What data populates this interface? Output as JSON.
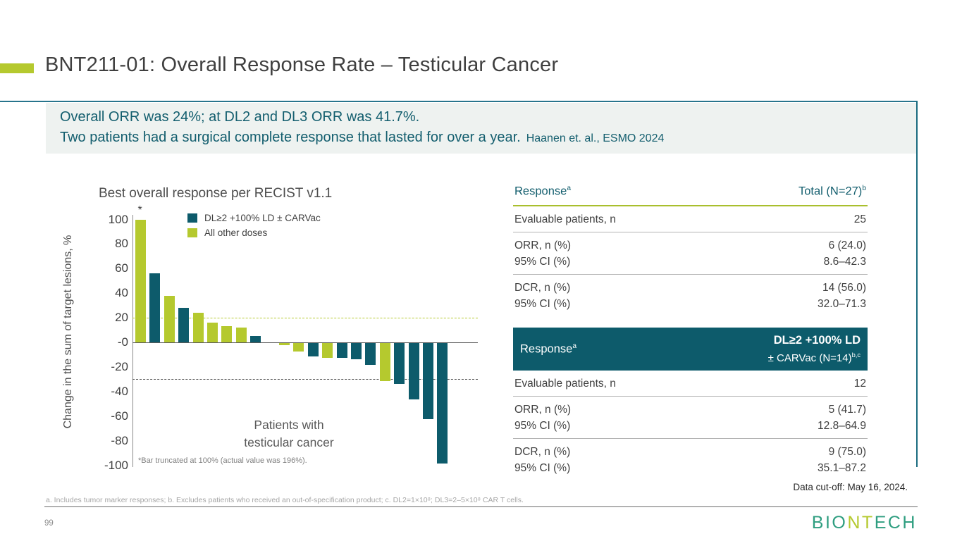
{
  "slide": {
    "title": "BNT211-01: Overall Response Rate – Testicular Cancer",
    "page_number": "99",
    "data_cutoff": "Data cut-off: May 16, 2024.",
    "footnote": "a. Includes tumor marker responses; b. Excludes patients who received an out-of-specification product; c. DL2=1×10⁸; DL3=2–5×10⁸ CAR T cells.",
    "logo": {
      "part1": "BIO",
      "part2": "NT",
      "part3": "ECH"
    }
  },
  "highlight": {
    "line1": "Overall ORR was 24%; at DL2 and DL3 ORR was 41.7%.",
    "line2": "Two patients had a surgical complete response that lasted for over a year.",
    "reference": "Haanen  et. al., ESMO 2024"
  },
  "colors": {
    "teal_bar": "#0d5b6b",
    "green_bar": "#b5c92e",
    "teal_text": "#135e6e",
    "rule_teal": "#27748c"
  },
  "chart_data": {
    "type": "bar",
    "title": "Best overall response per RECIST v1.1",
    "ylabel": "Change in the sum of target lesions, %",
    "xlabel": "",
    "ylim": [
      -100,
      100
    ],
    "ytick_labels": [
      "100",
      "80",
      "60",
      "40",
      "20",
      "-0",
      "-20",
      "-40",
      "-60",
      "-80",
      "-100"
    ],
    "grid": false,
    "legend_position": "upper-right-inside",
    "legend": [
      {
        "label": "DL≥2 +100% LD ± CARVac",
        "group": "dl2",
        "color": "#0d5b6b"
      },
      {
        "label": "All other doses",
        "group": "other",
        "color": "#b5c92e"
      }
    ],
    "reference_lines": [
      {
        "value": 20,
        "color": "#b5c92e"
      },
      {
        "value": -30,
        "color": "#555555"
      }
    ],
    "bars": [
      {
        "value": 100,
        "group": "other",
        "truncated": true,
        "marker": "*"
      },
      {
        "value": 56,
        "group": "dl2"
      },
      {
        "value": 38,
        "group": "other"
      },
      {
        "value": 28,
        "group": "dl2"
      },
      {
        "value": 24,
        "group": "other"
      },
      {
        "value": 16,
        "group": "other"
      },
      {
        "value": 13,
        "group": "other"
      },
      {
        "value": 12,
        "group": "other"
      },
      {
        "value": 5,
        "group": "dl2"
      },
      {
        "value": 0,
        "group": "other"
      },
      {
        "value": -2,
        "group": "other"
      },
      {
        "value": -7,
        "group": "other"
      },
      {
        "value": -11,
        "group": "dl2"
      },
      {
        "value": -12,
        "group": "other"
      },
      {
        "value": -12,
        "group": "dl2"
      },
      {
        "value": -13,
        "group": "dl2"
      },
      {
        "value": -18,
        "group": "dl2"
      },
      {
        "value": -31,
        "group": "other"
      },
      {
        "value": -33,
        "group": "dl2"
      },
      {
        "value": -46,
        "group": "dl2"
      },
      {
        "value": -62,
        "group": "dl2"
      },
      {
        "value": -98,
        "group": "dl2"
      }
    ],
    "center_label_line1": "Patients with",
    "center_label_line2": "testicular cancer",
    "truncation_note": "*Bar truncated at 100% (actual value was 196%)."
  },
  "table_total": {
    "header": {
      "col1": "Response",
      "col1_sup": "a",
      "col2": "Total (N=27)",
      "col2_sup": "b"
    },
    "rows": [
      {
        "labels": [
          "Evaluable patients, n"
        ],
        "values": [
          "25"
        ]
      },
      {
        "labels": [
          "ORR, n (%)",
          "95% CI (%)"
        ],
        "values": [
          "6 (24.0)",
          "8.6–42.3"
        ]
      },
      {
        "labels": [
          "DCR, n (%)",
          "95% CI (%)"
        ],
        "values": [
          "14 (56.0)",
          "32.0–71.3"
        ]
      }
    ]
  },
  "table_dl2": {
    "header": {
      "col1": "Response",
      "col1_sup": "a",
      "col2_line1": "DL≥2 +100% LD",
      "col2_line2": "± CARVac (N=14)",
      "col2_sup": "b,c"
    },
    "rows": [
      {
        "labels": [
          "Evaluable patients, n"
        ],
        "values": [
          "12"
        ]
      },
      {
        "labels": [
          "ORR, n (%)",
          "95% CI (%)"
        ],
        "values": [
          "5 (41.7)",
          "12.8–64.9"
        ]
      },
      {
        "labels": [
          "DCR, n (%)",
          "95% CI (%)"
        ],
        "values": [
          "9 (75.0)",
          "35.1–87.2"
        ]
      }
    ]
  }
}
